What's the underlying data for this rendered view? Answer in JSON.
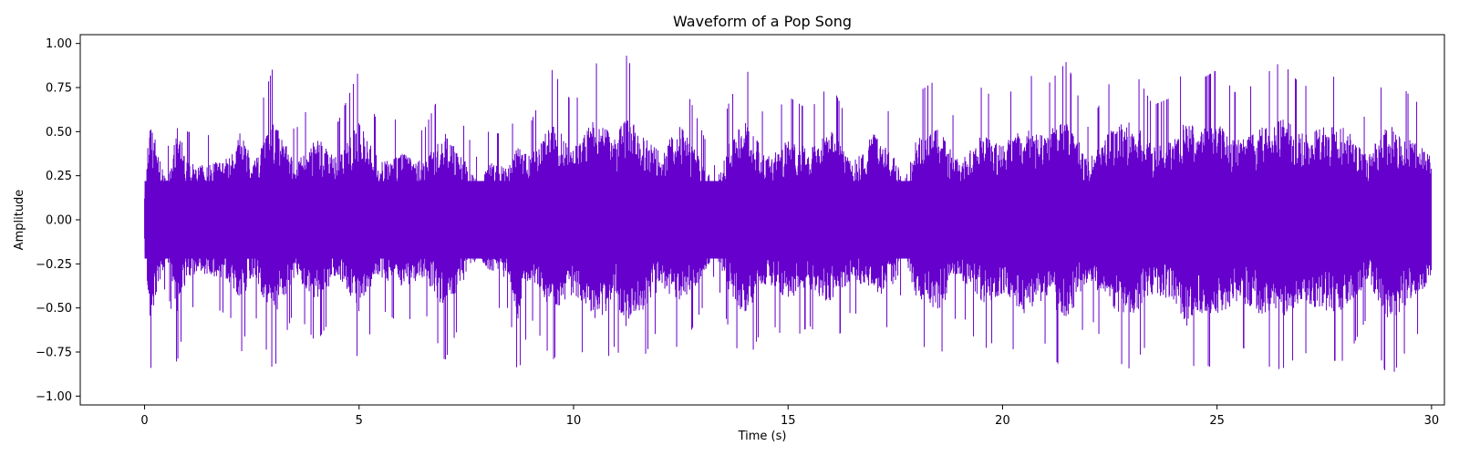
{
  "chart_data": {
    "type": "area",
    "title": "Waveform of a Pop Song",
    "xlabel": "Time (s)",
    "ylabel": "Amplitude",
    "xlim": [
      -1.5,
      30.3
    ],
    "ylim": [
      -1.05,
      1.05
    ],
    "x_ticks": [
      0,
      5,
      10,
      15,
      20,
      25,
      30
    ],
    "x_tick_labels": [
      "0",
      "5",
      "10",
      "15",
      "20",
      "25",
      "30"
    ],
    "y_ticks": [
      1.0,
      0.75,
      0.5,
      0.25,
      0.0,
      -0.25,
      -0.5,
      -0.75,
      -1.0
    ],
    "y_tick_labels": [
      "1.00",
      "0.75",
      "0.50",
      "0.25",
      "0.00",
      "−0.25",
      "−0.50",
      "−0.75",
      "−1.00"
    ],
    "grid": false,
    "legend": "none",
    "series": [
      {
        "color": "#6600cc",
        "signal": "audio waveform, 0–30 s",
        "envelope": {
          "x": [
            0.0,
            0.12,
            0.5,
            0.65,
            0.75,
            1.0,
            1.5,
            2.0,
            2.25,
            2.5,
            3.0,
            3.5,
            4.0,
            4.5,
            5.0,
            5.5,
            6.0,
            6.5,
            7.0,
            7.5,
            7.8,
            8.0,
            8.5,
            8.7,
            9.0,
            9.5,
            10.0,
            10.5,
            11.0,
            11.2,
            11.5,
            12.0,
            12.5,
            13.0,
            13.3,
            13.6,
            14.0,
            14.5,
            15.0,
            15.5,
            16.0,
            16.5,
            17.0,
            17.5,
            17.7,
            18.0,
            18.5,
            19.0,
            19.5,
            20.0,
            20.5,
            21.0,
            21.5,
            22.0,
            22.5,
            23.0,
            23.5,
            24.0,
            24.3,
            24.5,
            25.0,
            25.5,
            26.0,
            26.5,
            27.0,
            27.5,
            28.0,
            28.5,
            29.0,
            29.5,
            30.0
          ],
          "max": [
            0.24,
            0.88,
            0.35,
            0.55,
            0.87,
            0.5,
            0.48,
            0.55,
            0.85,
            0.48,
            0.87,
            0.5,
            0.72,
            0.55,
            0.85,
            0.5,
            0.6,
            0.5,
            0.78,
            0.5,
            0.32,
            0.5,
            0.48,
            0.65,
            0.55,
            0.85,
            0.65,
            0.9,
            0.7,
            0.95,
            0.78,
            0.6,
            0.82,
            0.5,
            0.3,
            0.65,
            0.88,
            0.55,
            0.7,
            0.62,
            0.78,
            0.5,
            0.75,
            0.55,
            0.35,
            0.72,
            0.8,
            0.5,
            0.75,
            0.65,
            0.85,
            0.75,
            0.9,
            0.52,
            0.78,
            0.88,
            0.65,
            0.7,
            0.93,
            0.78,
            0.85,
            0.7,
            0.8,
            0.9,
            0.75,
            0.82,
            0.8,
            0.55,
            0.86,
            0.7,
            0.6
          ],
          "min": [
            -0.23,
            -0.88,
            -0.35,
            -0.55,
            -0.82,
            -0.5,
            -0.48,
            -0.55,
            -0.76,
            -0.48,
            -0.86,
            -0.5,
            -0.7,
            -0.5,
            -0.8,
            -0.5,
            -0.6,
            -0.5,
            -0.8,
            -0.5,
            -0.3,
            -0.5,
            -0.5,
            -0.89,
            -0.55,
            -0.8,
            -0.65,
            -0.9,
            -0.7,
            -0.95,
            -0.85,
            -0.6,
            -0.75,
            -0.5,
            -0.3,
            -0.6,
            -0.85,
            -0.55,
            -0.7,
            -0.6,
            -0.75,
            -0.5,
            -0.7,
            -0.55,
            -0.35,
            -0.68,
            -0.8,
            -0.5,
            -0.75,
            -0.65,
            -0.82,
            -0.7,
            -0.9,
            -0.52,
            -0.78,
            -0.85,
            -0.65,
            -0.7,
            -0.93,
            -0.8,
            -0.85,
            -0.7,
            -0.82,
            -0.85,
            -0.75,
            -0.8,
            -0.8,
            -0.55,
            -0.92,
            -0.7,
            -0.55
          ]
        }
      }
    ]
  }
}
